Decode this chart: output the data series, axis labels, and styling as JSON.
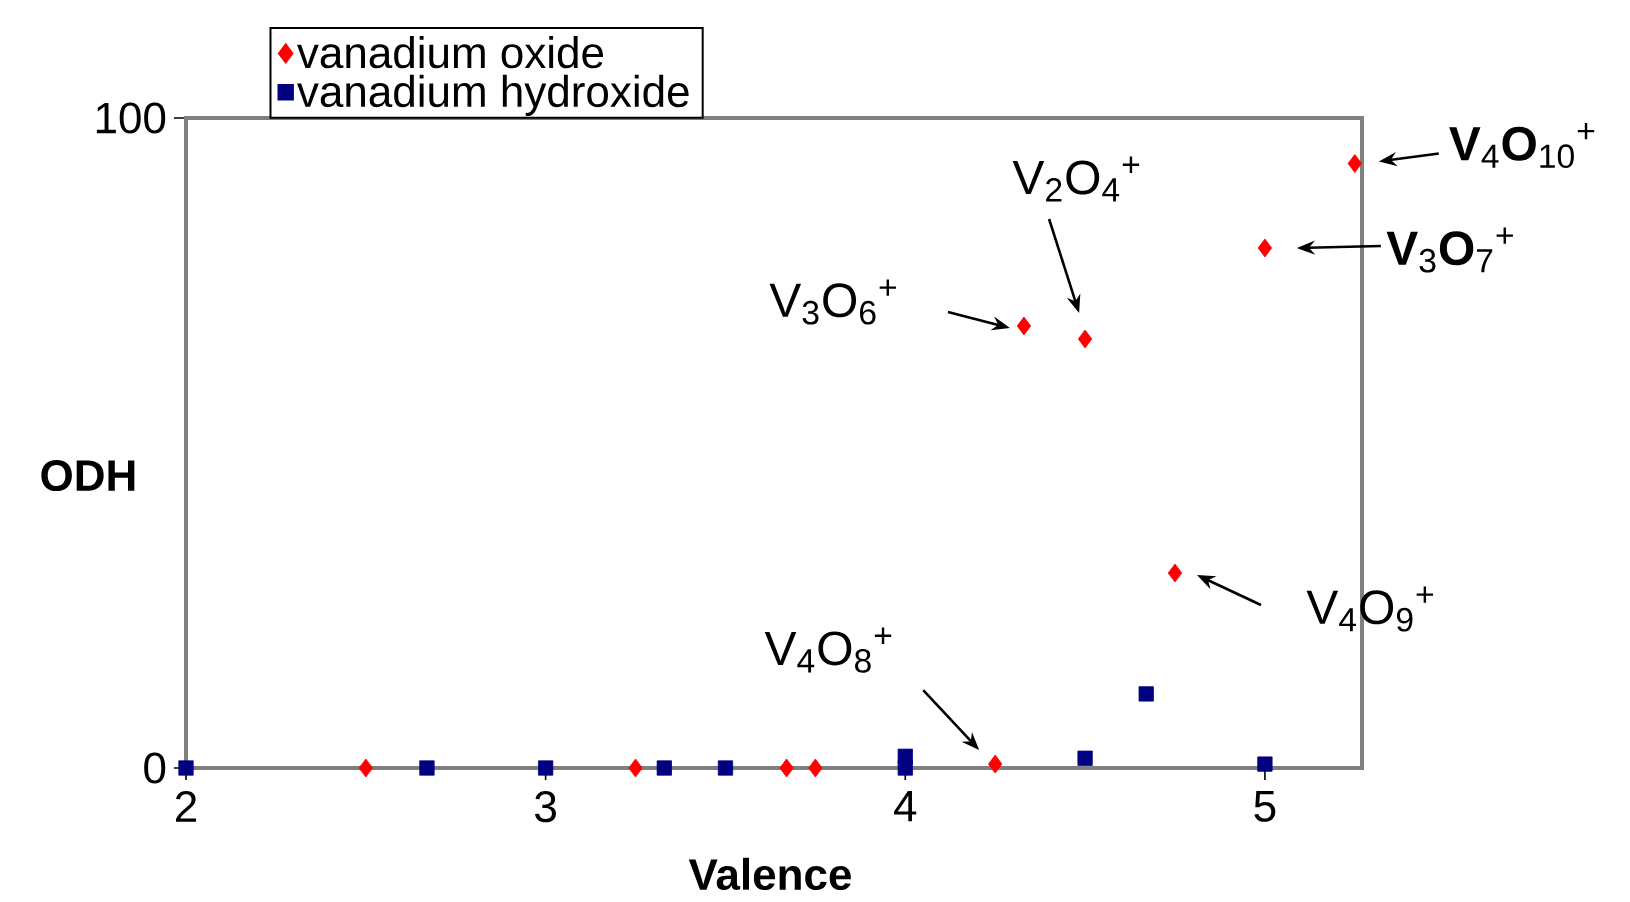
{
  "chart_data": {
    "type": "scatter",
    "xlabel": "Valence",
    "ylabel": "ODH",
    "xlim": [
      2,
      5.27
    ],
    "xticks": [
      2,
      3,
      4,
      5
    ],
    "ylim": [
      0,
      100
    ],
    "yticks": [
      0,
      100
    ],
    "legend": "top left",
    "grid": false,
    "series": [
      {
        "name": "vanadium oxide",
        "color": "#ff0000",
        "marker": "diamond",
        "x": [
          2.5,
          3.25,
          3.67,
          3.75,
          4.25,
          4.33,
          4.5,
          4.75,
          5,
          5.25
        ],
        "values": [
          0,
          0,
          0,
          0,
          0.6,
          68,
          66,
          30,
          80,
          93
        ]
      },
      {
        "name": "vanadium hydroxide",
        "color": "#000080",
        "marker": "square",
        "x": [
          2,
          2.67,
          3,
          3.33,
          3.5,
          4,
          4,
          4.5,
          4.67,
          5
        ],
        "values": [
          0,
          0,
          0,
          0,
          0,
          0,
          1.8,
          1.5,
          11.4,
          0.6
        ]
      }
    ],
    "annotations": [
      {
        "text": "V$_{3}$O$_{6}$$^{+}$",
        "x": 4.33,
        "y": 68
      },
      {
        "text": "V$_{2}$O$_{4}$$^{+}$",
        "x": 4.5,
        "y": 66
      },
      {
        "text": "**V**$_{3}$**O**$_{7}$$^{+}$",
        "x": 5,
        "y": 80
      },
      {
        "text": "**V**$_{4}$**O**$_{10}$$^{+}$",
        "x": 5.25,
        "y": 93
      },
      {
        "text": "V$_{4}$O$_{9}$$^{+}$",
        "x": 4.75,
        "y": 30
      },
      {
        "text": "V$_{4}$O$_{8}$$^{+}$",
        "x": 4.25,
        "y": 0.6
      }
    ]
  }
}
